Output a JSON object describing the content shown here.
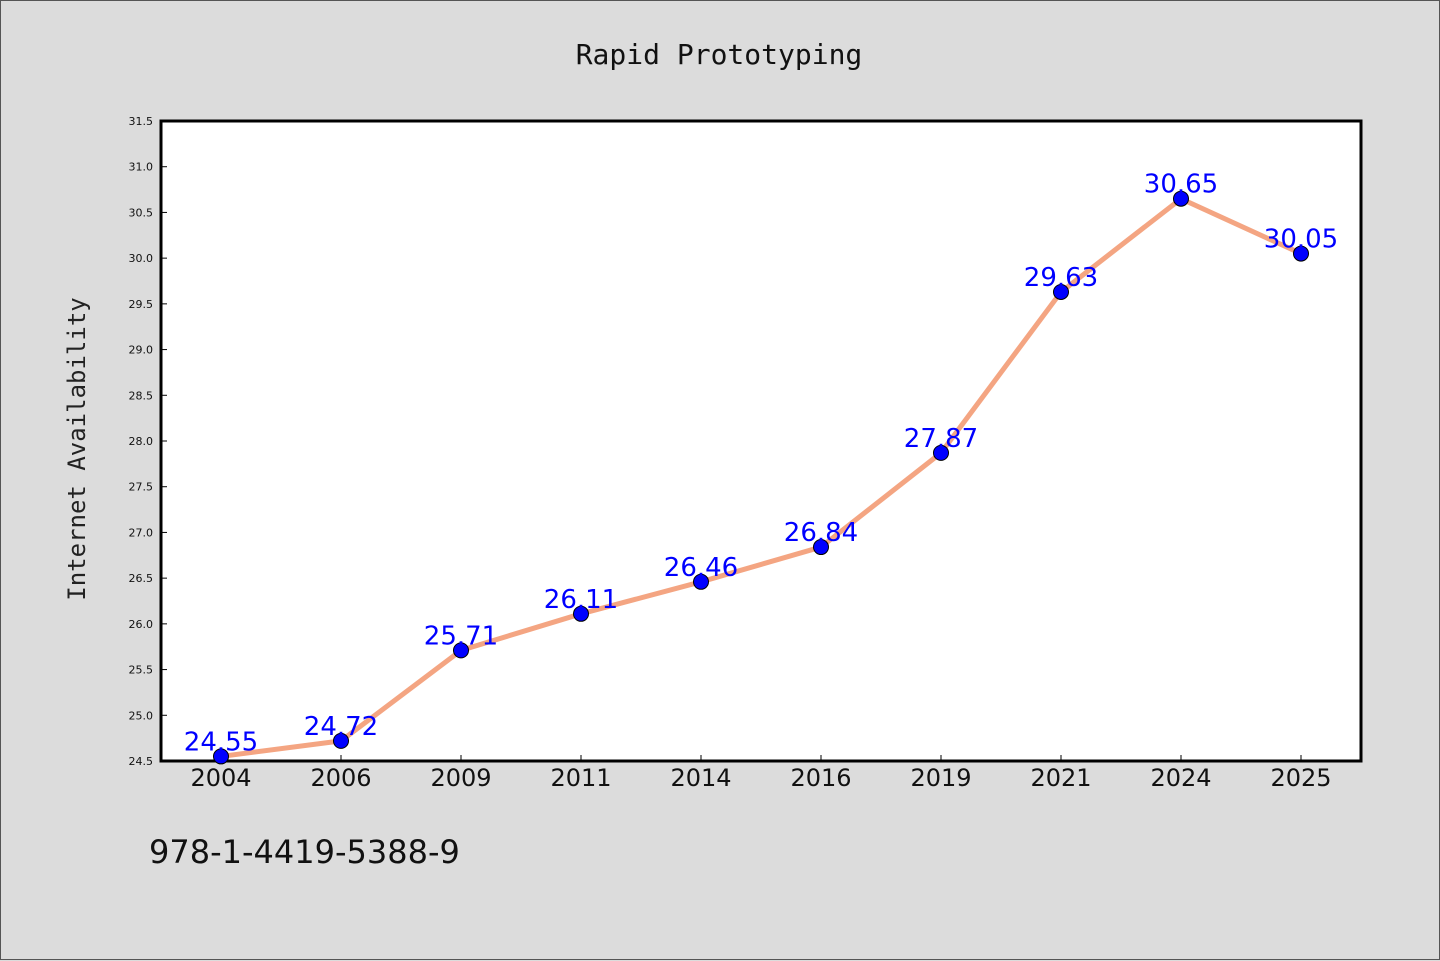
{
  "chart_data": {
    "type": "line",
    "title": "Rapid Prototyping",
    "xlabel": "",
    "ylabel": "Internet Availability",
    "categories": [
      "2004",
      "2006",
      "2009",
      "2011",
      "2014",
      "2016",
      "2019",
      "2021",
      "2024",
      "2025"
    ],
    "values": [
      24.55,
      24.72,
      25.71,
      26.11,
      26.46,
      26.84,
      27.87,
      29.63,
      30.65,
      30.05
    ],
    "data_labels": [
      "24.55",
      "24.72",
      "25.71",
      "26.11",
      "26.46",
      "26.84",
      "27.87",
      "29.63",
      "30.65",
      "30.05"
    ],
    "ylim": [
      24.5,
      31.5
    ],
    "yticks": [
      "24.5",
      "25.0",
      "25.5",
      "26.0",
      "26.5",
      "27.0",
      "27.5",
      "28.0",
      "28.5",
      "29.0",
      "29.5",
      "30.0",
      "30.5",
      "31.0",
      "31.5"
    ],
    "grid": false,
    "line_color": "#f4a582",
    "marker_color": "#0000ff",
    "label_color": "#0000ff"
  },
  "footer": {
    "code": "978-1-4419-5388-9"
  }
}
